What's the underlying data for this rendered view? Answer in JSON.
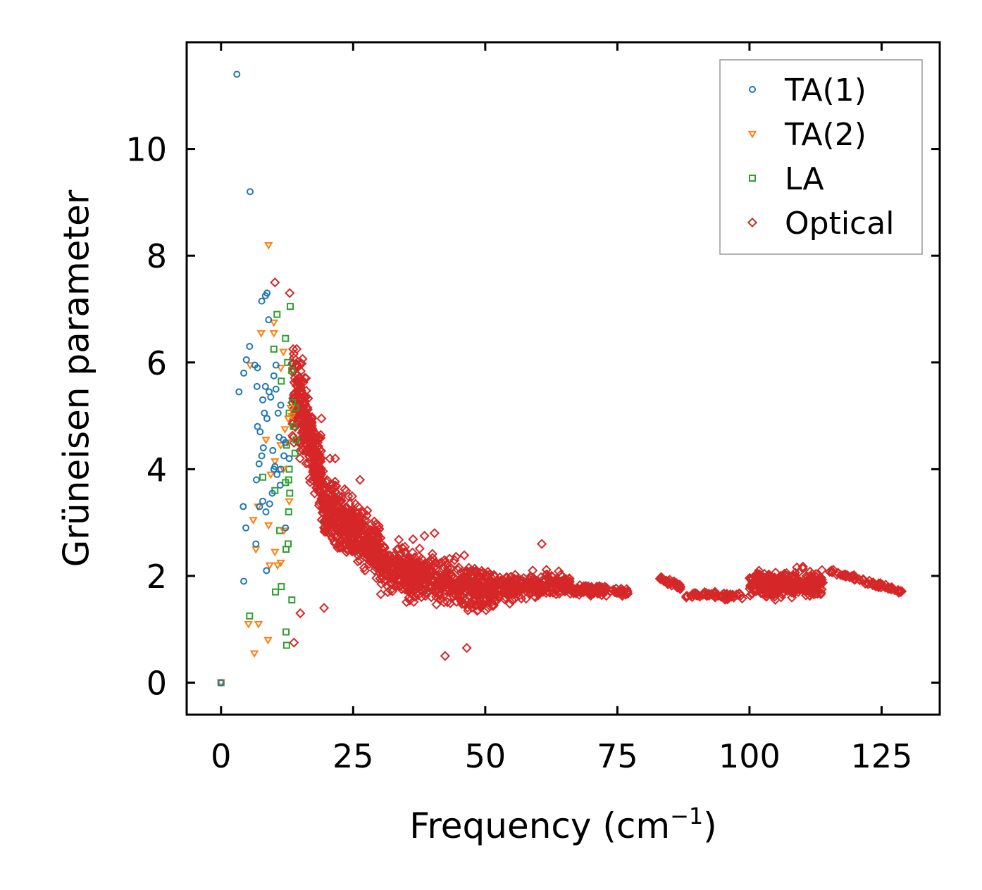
{
  "chart_data": {
    "type": "scatter",
    "title": "",
    "xlabel": "Frequency (cm",
    "xlabel_sup": "−1",
    "xlabel_end": ")",
    "ylabel": "Grüneisen parameter",
    "xlim": [
      -6.5,
      136
    ],
    "ylim": [
      -0.6,
      12.0
    ],
    "xticks": [
      0,
      25,
      50,
      75,
      100,
      125
    ],
    "yticks": [
      0,
      2,
      4,
      6,
      8,
      10
    ],
    "xtick_labels": [
      "0",
      "25",
      "50",
      "75",
      "100",
      "125"
    ],
    "ytick_labels": [
      "0",
      "2",
      "4",
      "6",
      "8",
      "10"
    ],
    "legend_position": "top-right",
    "series": [
      {
        "name": "TA(1)",
        "marker": "circle",
        "color": "#1f77b4",
        "points": [
          [
            0,
            0
          ],
          [
            3,
            11.4
          ],
          [
            5.5,
            9.2
          ],
          [
            3.4,
            5.45
          ],
          [
            4.3,
            5.8
          ],
          [
            4.8,
            6.05
          ],
          [
            5.4,
            6.3
          ],
          [
            6.4,
            5.95
          ],
          [
            6.9,
            5.9
          ],
          [
            7.7,
            7.15
          ],
          [
            8.4,
            7.25
          ],
          [
            8.7,
            7.3
          ],
          [
            9,
            6.8
          ],
          [
            6.8,
            5.55
          ],
          [
            7.9,
            5.3
          ],
          [
            8.4,
            5.55
          ],
          [
            9.1,
            5.45
          ],
          [
            10,
            5.75
          ],
          [
            10.4,
            5.95
          ],
          [
            8.2,
            5.05
          ],
          [
            8.7,
            4.95
          ],
          [
            6.9,
            4.8
          ],
          [
            7.4,
            4.7
          ],
          [
            8,
            4.4
          ],
          [
            7.7,
            4.25
          ],
          [
            7.2,
            4.1
          ],
          [
            9.8,
            4.35
          ],
          [
            10.2,
            4.05
          ],
          [
            11,
            4.6
          ],
          [
            11.8,
            4.55
          ],
          [
            12.2,
            4.5
          ],
          [
            11.3,
            5.2
          ],
          [
            10.8,
            5.05
          ],
          [
            9.4,
            5.35
          ],
          [
            10.4,
            5.5
          ],
          [
            11.9,
            4.25
          ],
          [
            11.3,
            4.0
          ],
          [
            10,
            4.0
          ],
          [
            9.7,
            3.55
          ],
          [
            9.2,
            3.35
          ],
          [
            7.9,
            3.4
          ],
          [
            7.3,
            3.3
          ],
          [
            8.5,
            3.2
          ],
          [
            6.7,
            3.8
          ],
          [
            4.2,
            3.3
          ],
          [
            4.7,
            2.9
          ],
          [
            6.6,
            2.6
          ],
          [
            4.3,
            1.9
          ],
          [
            8.6,
            2.1
          ],
          [
            12.2,
            2.9
          ],
          [
            11.2,
            3.7
          ],
          [
            12.9,
            4.2
          ],
          [
            10.6,
            3.9
          ]
        ]
      },
      {
        "name": "TA(2)",
        "marker": "triangle-down",
        "color": "#ff7f0e",
        "points": [
          [
            0,
            0
          ],
          [
            9,
            8.2
          ],
          [
            7.6,
            6.55
          ],
          [
            10,
            6.75
          ],
          [
            10,
            6.55
          ],
          [
            11.3,
            5.9
          ],
          [
            11.8,
            6.2
          ],
          [
            12.7,
            4.95
          ],
          [
            13.2,
            5.15
          ],
          [
            12.1,
            4.75
          ],
          [
            11.3,
            4.45
          ],
          [
            11.8,
            4.0
          ],
          [
            13.4,
            5.0
          ],
          [
            5.5,
            5.95
          ],
          [
            8.5,
            4.55
          ],
          [
            9.4,
            3.9
          ],
          [
            10.2,
            4.15
          ],
          [
            12.6,
            4.5
          ],
          [
            7,
            3.3
          ],
          [
            6.1,
            3.05
          ],
          [
            9,
            2.95
          ],
          [
            11.9,
            2.85
          ],
          [
            6.6,
            2.5
          ],
          [
            10.2,
            2.45
          ],
          [
            10.7,
            2.2
          ],
          [
            9.2,
            2.2
          ],
          [
            11.3,
            2.25
          ],
          [
            5.2,
            1.1
          ],
          [
            7.1,
            1.1
          ],
          [
            8.9,
            0.8
          ],
          [
            6.3,
            0.55
          ],
          [
            12.9,
            3.4
          ]
        ]
      },
      {
        "name": "LA",
        "marker": "square",
        "color": "#2ca02c",
        "points": [
          [
            0,
            0
          ],
          [
            10.6,
            6.9
          ],
          [
            12.2,
            6.45
          ],
          [
            10,
            6.25
          ],
          [
            12.6,
            6.0
          ],
          [
            13.1,
            7.05
          ],
          [
            13.4,
            5.85
          ],
          [
            11.4,
            5.65
          ],
          [
            13.5,
            5.25
          ],
          [
            14.1,
            5.15
          ],
          [
            12.9,
            5.05
          ],
          [
            13.7,
            4.8
          ],
          [
            14.2,
            4.55
          ],
          [
            14,
            4.3
          ],
          [
            12.4,
            4.45
          ],
          [
            12.9,
            4.0
          ],
          [
            12.2,
            3.75
          ],
          [
            13,
            3.55
          ],
          [
            12.8,
            3.2
          ],
          [
            10.2,
            3.6
          ],
          [
            7.9,
            3.85
          ],
          [
            12.7,
            2.6
          ],
          [
            12.3,
            2.5
          ],
          [
            11.1,
            2.85
          ],
          [
            10.3,
            1.7
          ],
          [
            11.4,
            1.8
          ],
          [
            13.4,
            1.55
          ],
          [
            5.4,
            1.25
          ],
          [
            12.3,
            0.95
          ],
          [
            12.4,
            0.7
          ],
          [
            12.8,
            3.8
          ]
        ]
      },
      {
        "name": "Optical",
        "marker": "diamond",
        "color": "#d62728",
        "points": [
          [
            10.2,
            7.5
          ],
          [
            13,
            7.3
          ],
          [
            19,
            4.95
          ],
          [
            26.3,
            3.8
          ],
          [
            38.5,
            2.75
          ],
          [
            40.4,
            2.8
          ],
          [
            60.7,
            2.6
          ],
          [
            42.4,
            0.5
          ],
          [
            46.5,
            0.65
          ],
          [
            13.8,
            0.75
          ],
          [
            15,
            1.3
          ],
          [
            19.5,
            1.4
          ],
          [
            20.6,
            4.2
          ],
          [
            21.6,
            4.2
          ]
        ],
        "bands": [
          {
            "x": [
              13.5,
              19
            ],
            "center": [
              5.6,
              3.9
            ],
            "spread": [
              1.8,
              1.2
            ],
            "count": 300
          },
          {
            "x": [
              19,
              30
            ],
            "center": [
              3.3,
              2.5
            ],
            "spread": [
              1.1,
              0.9
            ],
            "count": 500
          },
          {
            "x": [
              30,
              52
            ],
            "center": [
              2.2,
              1.7
            ],
            "spread": [
              0.9,
              0.75
            ],
            "count": 600
          },
          {
            "x": [
              52,
              66
            ],
            "center": [
              1.75,
              1.85
            ],
            "spread": [
              0.45,
              0.4
            ],
            "count": 250
          },
          {
            "x": [
              66,
              77
            ],
            "center": [
              1.75,
              1.7
            ],
            "spread": [
              0.22,
              0.12
            ],
            "count": 120
          },
          {
            "x": [
              83,
              87
            ],
            "center": [
              1.95,
              1.8
            ],
            "spread": [
              0.12,
              0.12
            ],
            "count": 40
          },
          {
            "x": [
              88,
              99
            ],
            "center": [
              1.65,
              1.62
            ],
            "spread": [
              0.12,
              0.12
            ],
            "count": 70
          },
          {
            "x": [
              100,
              114
            ],
            "center": [
              1.85,
              1.85
            ],
            "spread": [
              0.45,
              0.45
            ],
            "count": 300
          },
          {
            "x": [
              115,
              129
            ],
            "center": [
              2.1,
              1.7
            ],
            "spread": [
              0.1,
              0.08
            ],
            "count": 80
          }
        ]
      }
    ]
  }
}
